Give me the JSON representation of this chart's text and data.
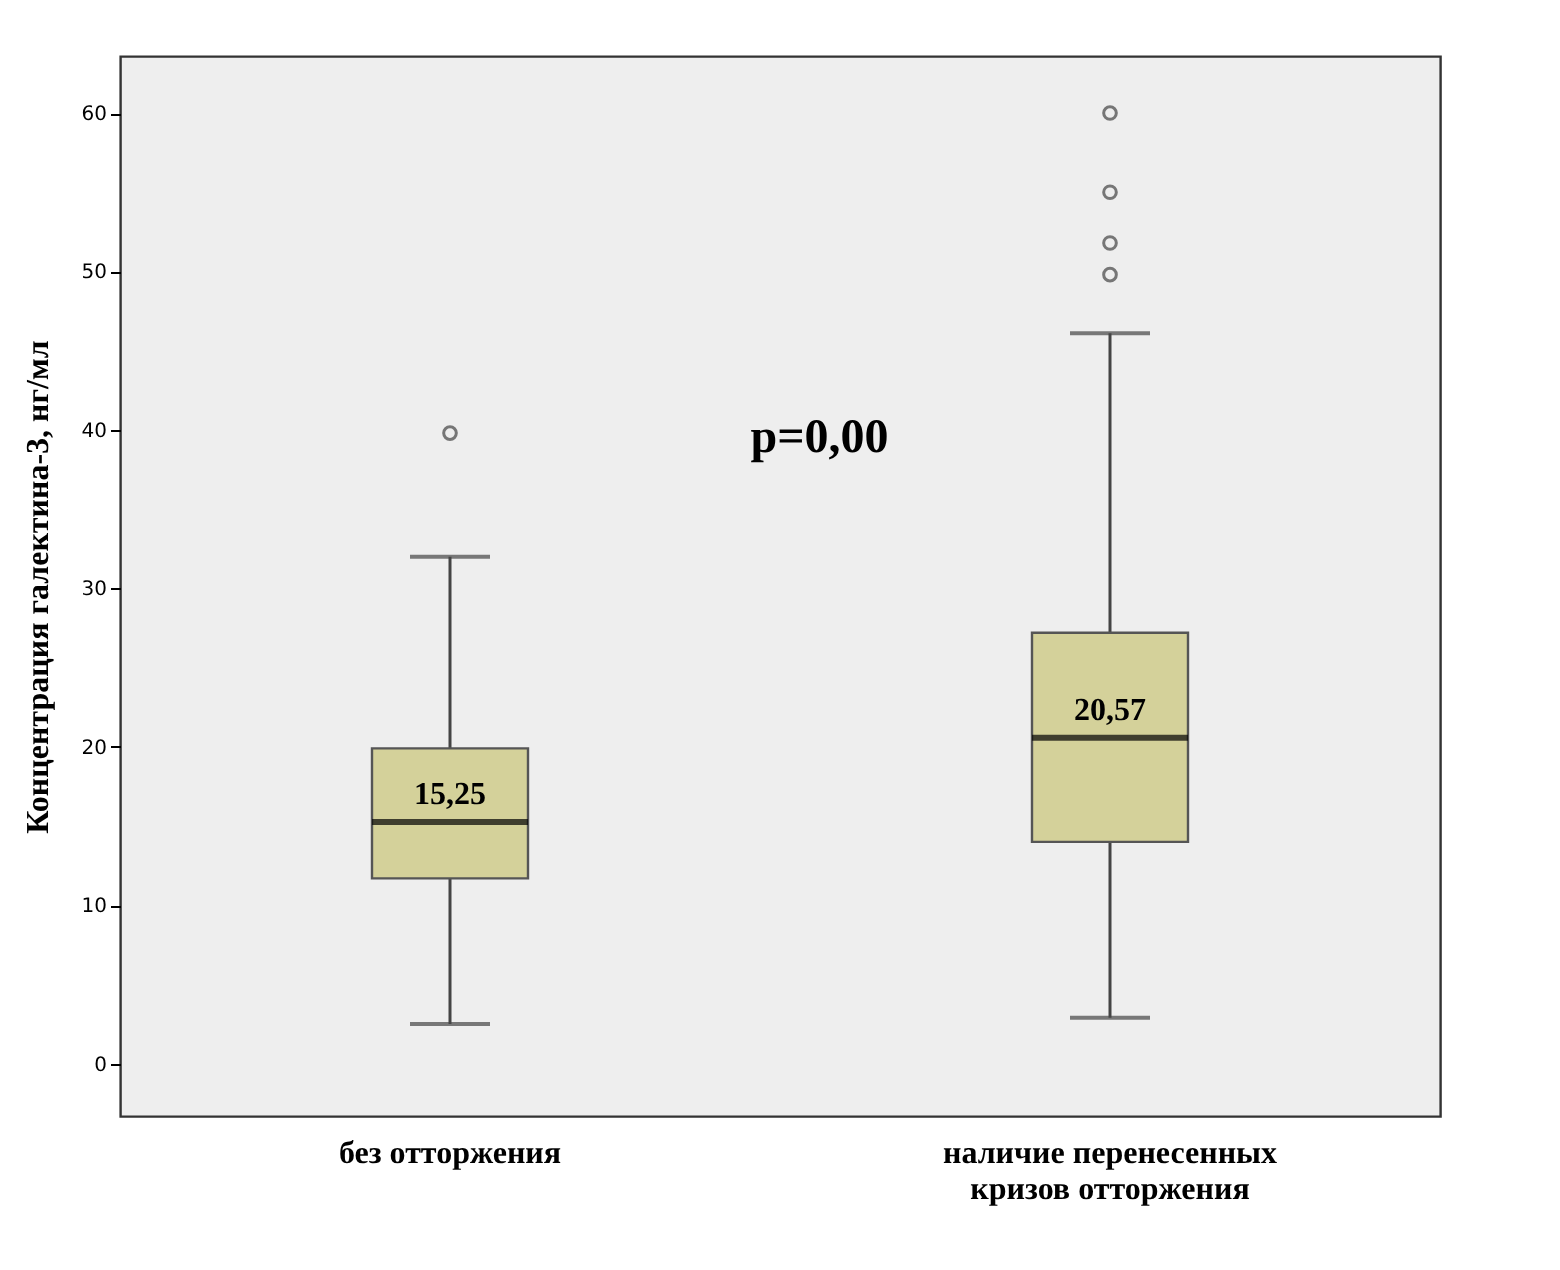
{
  "chart_data": {
    "type": "box",
    "ylabel": "Концентрация галектина-3, нг/мл",
    "categories": [
      "без отторжения",
      "наличие перенесенных\nкризов отторжения"
    ],
    "color": "#d4d19a",
    "boxes": [
      {
        "low": 2.5,
        "q1": 11.7,
        "median": 15.25,
        "q3": 19.9,
        "high": 32,
        "outliers": [
          39.8
        ]
      },
      {
        "low": 2.9,
        "q1": 14,
        "median": 20.57,
        "q3": 27.2,
        "high": 46.1,
        "outliers": [
          49.8,
          51.8,
          55,
          60
        ]
      }
    ],
    "ylim": [
      -3.3,
      63.6
    ],
    "yticks": [
      0,
      10,
      20,
      30,
      40,
      50,
      60
    ],
    "annotations": [
      {
        "text": "15,25",
        "x": "без отторжения",
        "y": 15.25
      },
      {
        "text": "20,57",
        "x": "наличие перенесенных\nкризов отторжения",
        "y": 20.57
      },
      "p=0,00"
    ]
  }
}
